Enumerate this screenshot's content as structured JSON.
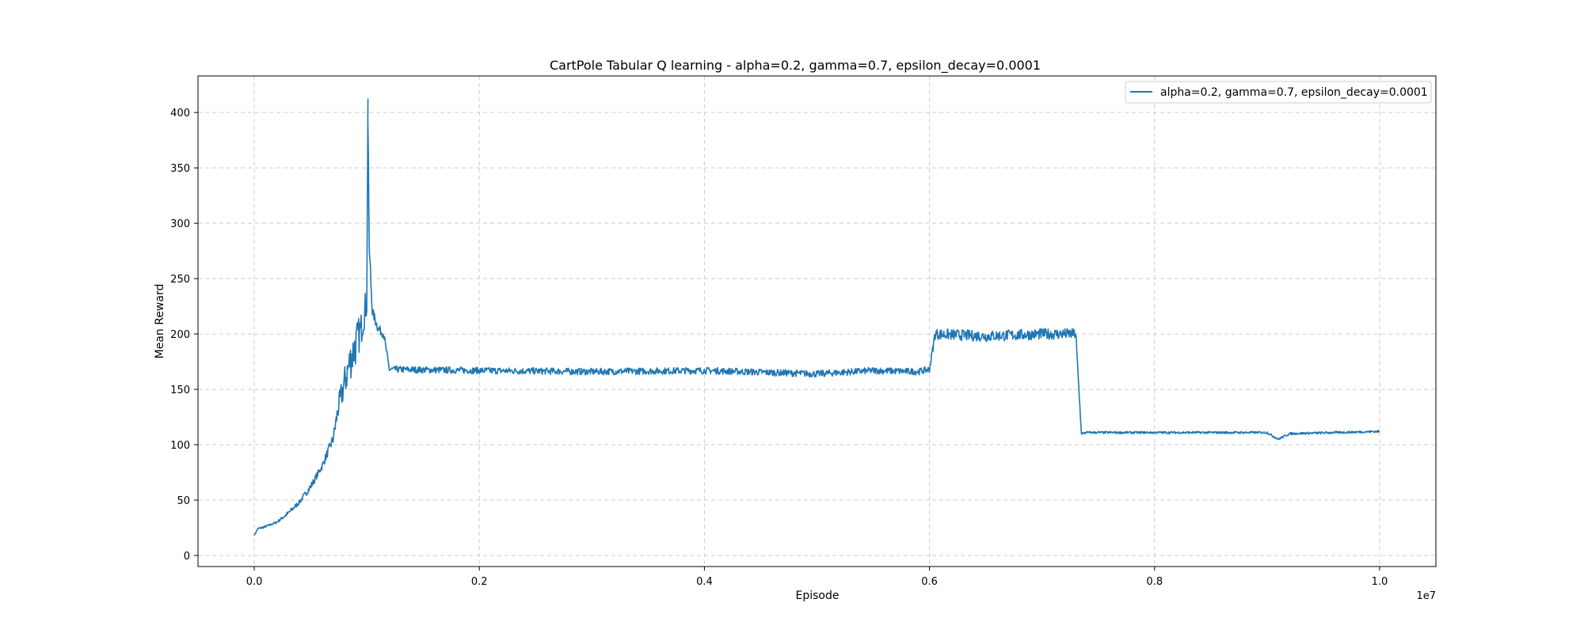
{
  "chart_data": {
    "type": "line",
    "title": "CartPole Tabular Q learning - alpha=0.2, gamma=0.7, epsilon_decay=0.0001",
    "xlabel": "Episode",
    "ylabel": "Mean Reward",
    "x_offset_label": "1e7",
    "xlim": [
      -0.05,
      1.05
    ],
    "ylim": [
      -10,
      433
    ],
    "x_ticks": [
      0.0,
      0.2,
      0.4,
      0.6,
      0.8,
      1.0
    ],
    "x_tick_labels": [
      "0.0",
      "0.2",
      "0.4",
      "0.6",
      "0.8",
      "1.0"
    ],
    "y_ticks": [
      0,
      50,
      100,
      150,
      200,
      250,
      300,
      350,
      400
    ],
    "y_tick_labels": [
      "0",
      "50",
      "100",
      "150",
      "200",
      "250",
      "300",
      "350",
      "400"
    ],
    "grid": true,
    "grid_style": "dashed",
    "legend_position": "top-right",
    "colors": {
      "series": "#1f77b4",
      "grid": "#cccccc",
      "axis": "#000000"
    },
    "series": [
      {
        "name": "alpha=0.2, gamma=0.7, epsilon_decay=0.0001",
        "x": [
          0.0,
          0.003,
          0.01,
          0.02,
          0.03,
          0.04,
          0.05,
          0.06,
          0.07,
          0.075,
          0.08,
          0.085,
          0.09,
          0.095,
          0.1,
          0.101,
          0.102,
          0.105,
          0.11,
          0.115,
          0.12,
          0.2,
          0.3,
          0.4,
          0.5,
          0.55,
          0.59,
          0.6,
          0.605,
          0.65,
          0.7,
          0.73,
          0.735,
          0.74,
          0.8,
          0.9,
          0.91,
          0.92,
          1.0
        ],
        "y": [
          18,
          24,
          26,
          30,
          38,
          48,
          62,
          80,
          105,
          135,
          155,
          175,
          190,
          205,
          230,
          412,
          280,
          220,
          205,
          200,
          168,
          167,
          166,
          167,
          164,
          167,
          166,
          168,
          200,
          198,
          200,
          200,
          110,
          111,
          111,
          111,
          105,
          110,
          112
        ],
        "noise": [
          0,
          1,
          1,
          1,
          2,
          2,
          3,
          3,
          5,
          10,
          15,
          18,
          20,
          15,
          15,
          0,
          10,
          5,
          4,
          4,
          3,
          3,
          3,
          3,
          3,
          3,
          3,
          3,
          5,
          5,
          5,
          5,
          1,
          1,
          1,
          1,
          1,
          1,
          1
        ]
      }
    ]
  }
}
